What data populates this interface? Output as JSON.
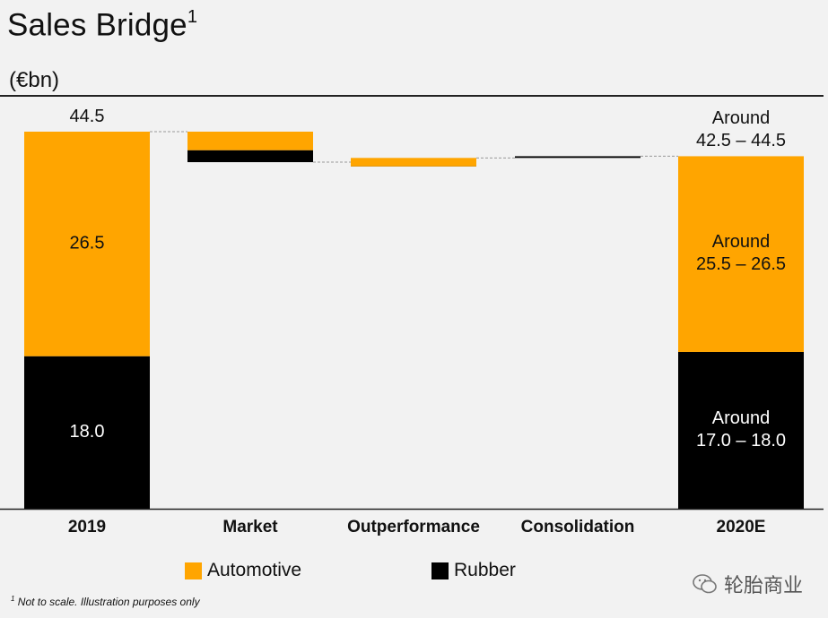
{
  "title": "Sales Bridge",
  "title_superscript": "1",
  "unit": "(€bn)",
  "legend": {
    "automotive": "Automotive",
    "rubber": "Rubber"
  },
  "footnote": {
    "marker": "1",
    "text": "Not to scale. Illustration purposes only"
  },
  "watermark": "轮胎商业",
  "colors": {
    "automotive": "#FFA500",
    "rubber": "#000000",
    "background": "#f2f2f2",
    "connector": "#999999"
  },
  "chart_data": {
    "type": "bar",
    "subtype": "waterfall",
    "categories": [
      "2019",
      "Market",
      "Outperformance",
      "Consolidation",
      "2020E"
    ],
    "series": [
      {
        "name": "Automotive",
        "values": [
          26.5,
          -2.2,
          1.0,
          null,
          26.0
        ]
      },
      {
        "name": "Rubber",
        "values": [
          18.0,
          -1.4,
          -0.5,
          0.2,
          17.5
        ]
      }
    ],
    "totals": [
      44.5,
      null,
      null,
      null,
      43.5
    ],
    "value_labels": {
      "2019": {
        "total": "44.5",
        "automotive": "26.5",
        "rubber": "18.0"
      },
      "2020E": {
        "total": [
          "Around",
          "42.5 – 44.5"
        ],
        "automotive": [
          "Around",
          "25.5 – 26.5"
        ],
        "rubber": [
          "Around",
          "17.0 – 18.0"
        ]
      }
    },
    "notes": "Not to scale"
  }
}
